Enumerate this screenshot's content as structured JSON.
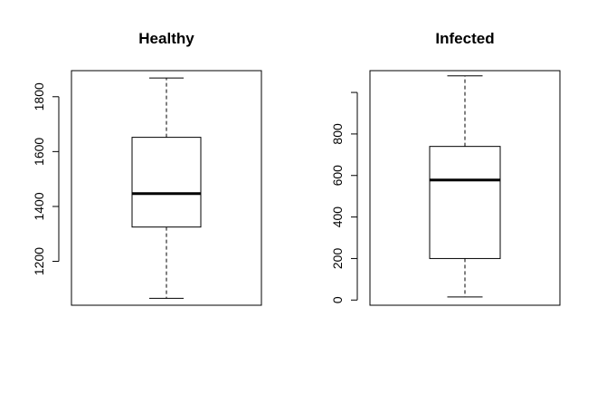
{
  "chart_data": [
    {
      "type": "boxplot",
      "title": "Healthy",
      "xlabel": "",
      "ylabel": "",
      "yticks": [
        1200,
        1400,
        1600,
        1800
      ],
      "ylim": [
        1040,
        1895
      ],
      "box": {
        "min": 1065,
        "q1": 1325,
        "median": 1447,
        "q3": 1652,
        "max": 1868
      }
    },
    {
      "type": "boxplot",
      "title": "Infected",
      "xlabel": "",
      "ylabel": "",
      "yticks": [
        0,
        200,
        400,
        600,
        800,
        1000
      ],
      "ytick_labels": [
        "0",
        "200",
        "400",
        "600",
        "800",
        ""
      ],
      "ylim": [
        -25,
        1105
      ],
      "box": {
        "min": 15,
        "q1": 200,
        "median": 578,
        "q3": 740,
        "max": 1080
      }
    }
  ]
}
